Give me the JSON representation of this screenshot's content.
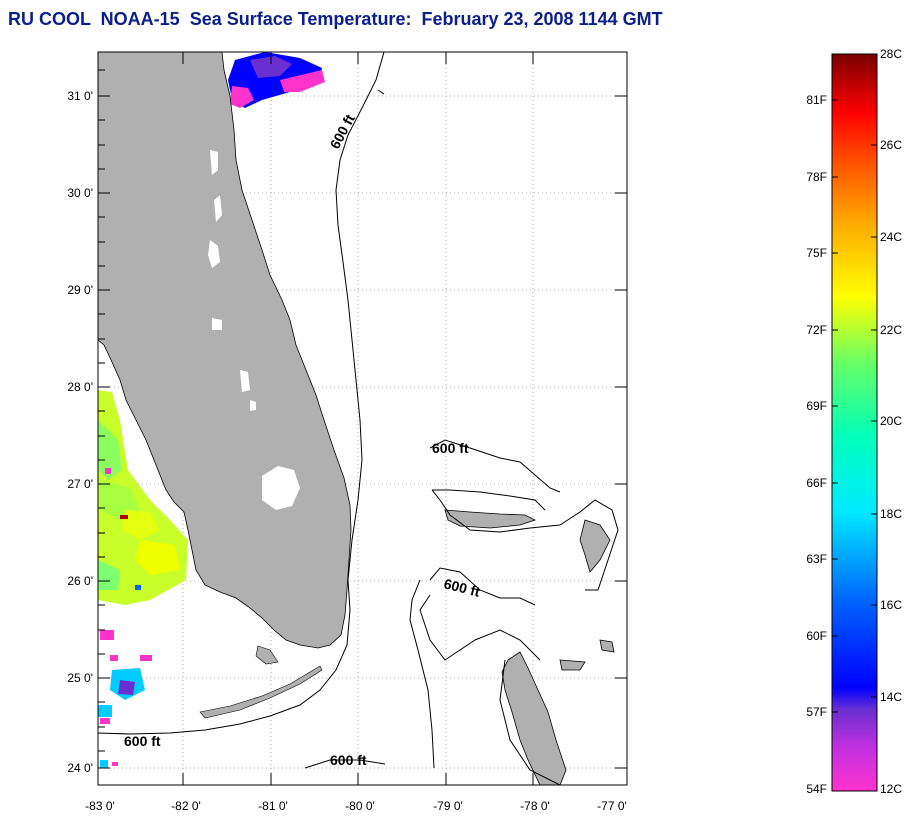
{
  "title": "RU COOL  NOAA-15  Sea Surface Temperature:  February 23, 2008 1144 GMT",
  "map": {
    "lon_ticks": [
      "-83 0'",
      "-82 0'",
      "-81 0'",
      "-80 0'",
      "-79 0'",
      "-78 0'",
      "-77 0'"
    ],
    "lat_ticks": [
      "31 0'",
      "30 0'",
      "29 0'",
      "28 0'",
      "27 0'",
      "26 0'",
      "25 0'",
      "24 0'"
    ],
    "land_color": "#b0b0b0",
    "contour_labels": [
      "600 ft",
      "600 ft",
      "600 ft",
      "600 ft",
      "600 ft"
    ]
  },
  "colorbar": {
    "fahrenheit_labels": [
      "81F",
      "78F",
      "75F",
      "72F",
      "69F",
      "66F",
      "63F",
      "60F",
      "57F",
      "54F"
    ],
    "celsius_labels": [
      "28C",
      "26C",
      "24C",
      "22C",
      "20C",
      "18C",
      "16C",
      "14C",
      "12C"
    ],
    "colors": [
      "#ff33cc",
      "#c030e0",
      "#6a2fd0",
      "#0000ff",
      "#0066ff",
      "#00ccff",
      "#00ffcc",
      "#66ff66",
      "#ffff00",
      "#ffaa00",
      "#ff6600",
      "#ff0000",
      "#cc0000",
      "#7a0000"
    ]
  }
}
